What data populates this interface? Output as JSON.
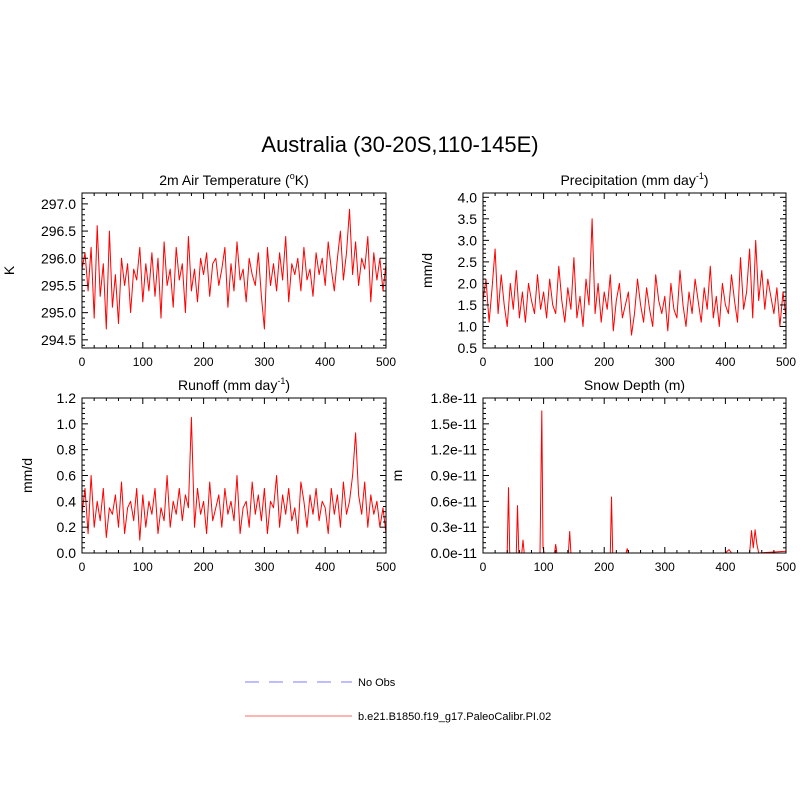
{
  "figure": {
    "title": "Australia (30-20S,110-145E)"
  },
  "legend": {
    "entries": [
      {
        "label": "No Obs",
        "color": "#a9a9ff",
        "style": "dashed"
      },
      {
        "label": "b.e21.B1850.f19_g17.PaleoCalibr.PI.02",
        "color": "#ff9a9a",
        "style": "solid"
      }
    ]
  },
  "chart_data": [
    {
      "type": "line",
      "title": "2m Air Temperature (",
      "title_sup": "o",
      "title_after": "K)",
      "xlabel": "",
      "ylabel": "K",
      "xlim": [
        0,
        500
      ],
      "ylim": [
        294.35,
        297.2
      ],
      "xticks": [
        0,
        100,
        200,
        300,
        400,
        500
      ],
      "xtick_labels": [
        "0",
        "100",
        "200",
        "300",
        "400",
        "500"
      ],
      "yticks": [
        294.5,
        295.0,
        295.5,
        296.0,
        296.5,
        297.0
      ],
      "ytick_labels": [
        "294.5",
        "295.0",
        "295.5",
        "296.0",
        "296.5",
        "297.0"
      ],
      "series": [
        {
          "name": "b.e21.B1850.f19_g17.PaleoCalibr.PI.02",
          "color": "#ff0000",
          "x": [
            0,
            5,
            10,
            15,
            20,
            25,
            30,
            35,
            40,
            45,
            50,
            55,
            60,
            65,
            70,
            75,
            80,
            85,
            90,
            95,
            100,
            105,
            110,
            115,
            120,
            125,
            130,
            135,
            140,
            145,
            150,
            155,
            160,
            165,
            170,
            175,
            180,
            185,
            190,
            195,
            200,
            205,
            210,
            215,
            220,
            225,
            230,
            235,
            240,
            245,
            250,
            255,
            260,
            265,
            270,
            275,
            280,
            285,
            290,
            295,
            300,
            305,
            310,
            315,
            320,
            325,
            330,
            335,
            340,
            345,
            350,
            355,
            360,
            365,
            370,
            375,
            380,
            385,
            390,
            395,
            400,
            405,
            410,
            415,
            420,
            425,
            430,
            435,
            440,
            445,
            450,
            455,
            460,
            465,
            470,
            475,
            480,
            485,
            490,
            495,
            500
          ],
          "values": [
            295.8,
            296.1,
            295.4,
            296.2,
            294.9,
            296.6,
            295.3,
            295.9,
            294.7,
            296.5,
            295.1,
            295.7,
            294.8,
            296.0,
            295.5,
            295.9,
            295.0,
            295.8,
            295.6,
            296.2,
            295.2,
            295.9,
            295.4,
            296.1,
            295.3,
            296.0,
            294.9,
            296.3,
            295.5,
            295.8,
            295.1,
            296.2,
            295.6,
            295.9,
            295.0,
            296.4,
            295.4,
            295.8,
            295.2,
            296.0,
            295.7,
            296.1,
            295.3,
            295.9,
            296.0,
            295.5,
            295.8,
            296.2,
            295.1,
            295.9,
            295.4,
            296.3,
            295.6,
            295.8,
            295.2,
            296.0,
            295.7,
            295.5,
            296.1,
            295.3,
            294.7,
            296.2,
            295.5,
            295.9,
            295.4,
            296.1,
            295.6,
            296.4,
            295.2,
            295.9,
            295.7,
            296.0,
            295.4,
            296.2,
            295.6,
            295.8,
            295.3,
            296.1,
            295.7,
            296.0,
            295.5,
            296.3,
            295.8,
            295.4,
            296.0,
            296.5,
            295.6,
            296.1,
            296.9,
            295.7,
            296.3,
            295.5,
            296.0,
            295.8,
            296.4,
            295.2,
            296.1,
            295.6,
            296.0,
            295.4,
            295.9
          ]
        }
      ]
    },
    {
      "type": "line",
      "title": "Precipitation (mm day",
      "title_sup": "-1",
      "title_after": ")",
      "xlabel": "",
      "ylabel": "mm/d",
      "xlim": [
        0,
        500
      ],
      "ylim": [
        0.5,
        4.1
      ],
      "xticks": [
        0,
        100,
        200,
        300,
        400,
        500
      ],
      "xtick_labels": [
        "0",
        "100",
        "200",
        "300",
        "400",
        "500"
      ],
      "yticks": [
        0.5,
        1.0,
        1.5,
        2.0,
        2.5,
        3.0,
        3.5,
        4.0
      ],
      "ytick_labels": [
        "0.5",
        "1.0",
        "1.5",
        "2.0",
        "2.5",
        "3.0",
        "3.5",
        "4.0"
      ],
      "series": [
        {
          "name": "b.e21.B1850.f19_g17.PaleoCalibr.PI.02",
          "color": "#ff0000",
          "x": [
            0,
            5,
            10,
            15,
            20,
            25,
            30,
            35,
            40,
            45,
            50,
            55,
            60,
            65,
            70,
            75,
            80,
            85,
            90,
            95,
            100,
            105,
            110,
            115,
            120,
            125,
            130,
            135,
            140,
            145,
            150,
            155,
            160,
            165,
            170,
            175,
            180,
            185,
            190,
            195,
            200,
            205,
            210,
            215,
            220,
            225,
            230,
            235,
            240,
            245,
            250,
            255,
            260,
            265,
            270,
            275,
            280,
            285,
            290,
            295,
            300,
            305,
            310,
            315,
            320,
            325,
            330,
            335,
            340,
            345,
            350,
            355,
            360,
            365,
            370,
            375,
            380,
            385,
            390,
            395,
            400,
            405,
            410,
            415,
            420,
            425,
            430,
            435,
            440,
            445,
            450,
            455,
            460,
            465,
            470,
            475,
            480,
            485,
            490,
            495,
            500
          ],
          "values": [
            1.6,
            2.1,
            1.1,
            1.9,
            2.8,
            1.3,
            2.2,
            1.5,
            1.0,
            2.0,
            1.4,
            2.3,
            1.2,
            1.8,
            1.1,
            2.0,
            1.6,
            1.3,
            2.2,
            1.4,
            1.8,
            1.2,
            2.1,
            1.5,
            1.3,
            2.4,
            1.6,
            1.1,
            1.9,
            1.4,
            2.6,
            1.2,
            1.7,
            1.0,
            2.1,
            1.5,
            3.5,
            1.3,
            2.0,
            1.1,
            1.8,
            1.4,
            2.2,
            0.9,
            1.6,
            2.0,
            1.2,
            1.5,
            1.8,
            0.8,
            1.3,
            2.1,
            1.5,
            1.1,
            1.9,
            1.4,
            1.0,
            2.2,
            1.6,
            1.3,
            1.7,
            0.9,
            2.0,
            1.4,
            1.2,
            2.3,
            1.5,
            1.0,
            1.8,
            1.3,
            2.1,
            1.6,
            1.1,
            1.9,
            1.4,
            2.4,
            1.2,
            1.7,
            1.0,
            2.0,
            1.5,
            1.3,
            2.2,
            1.6,
            1.1,
            2.6,
            1.4,
            1.8,
            2.8,
            1.2,
            3.0,
            1.6,
            2.3,
            1.4,
            2.1,
            1.7,
            1.3,
            1.9,
            1.0,
            1.8,
            1.2
          ]
        }
      ]
    },
    {
      "type": "line",
      "title": "Runoff (mm day",
      "title_sup": "-1",
      "title_after": ")",
      "xlabel": "",
      "ylabel": "mm/d",
      "xlim": [
        0,
        500
      ],
      "ylim": [
        0,
        1.2
      ],
      "xticks": [
        0,
        100,
        200,
        300,
        400,
        500
      ],
      "xtick_labels": [
        "0",
        "100",
        "200",
        "300",
        "400",
        "500"
      ],
      "yticks": [
        0.0,
        0.2,
        0.4,
        0.6,
        0.8,
        1.0,
        1.2
      ],
      "ytick_labels": [
        "0.0",
        "0.2",
        "0.4",
        "0.6",
        "0.8",
        "1.0",
        "1.2"
      ],
      "series": [
        {
          "name": "b.e21.B1850.f19_g17.PaleoCalibr.PI.02",
          "color": "#ff0000",
          "x": [
            0,
            5,
            10,
            15,
            20,
            25,
            30,
            35,
            40,
            45,
            50,
            55,
            60,
            65,
            70,
            75,
            80,
            85,
            90,
            95,
            100,
            105,
            110,
            115,
            120,
            125,
            130,
            135,
            140,
            145,
            150,
            155,
            160,
            165,
            170,
            175,
            180,
            185,
            190,
            195,
            200,
            205,
            210,
            215,
            220,
            225,
            230,
            235,
            240,
            245,
            250,
            255,
            260,
            265,
            270,
            275,
            280,
            285,
            290,
            295,
            300,
            305,
            310,
            315,
            320,
            325,
            330,
            335,
            340,
            345,
            350,
            355,
            360,
            365,
            370,
            375,
            380,
            385,
            390,
            395,
            400,
            405,
            410,
            415,
            420,
            425,
            430,
            435,
            440,
            445,
            450,
            455,
            460,
            465,
            470,
            475,
            480,
            485,
            490,
            495,
            500
          ],
          "values": [
            0.3,
            0.5,
            0.15,
            0.6,
            0.2,
            0.4,
            0.25,
            0.5,
            0.12,
            0.35,
            0.3,
            0.45,
            0.2,
            0.55,
            0.15,
            0.35,
            0.4,
            0.25,
            0.5,
            0.1,
            0.45,
            0.2,
            0.4,
            0.3,
            0.5,
            0.15,
            0.35,
            0.25,
            0.6,
            0.2,
            0.4,
            0.3,
            0.5,
            0.25,
            0.45,
            0.35,
            1.05,
            0.2,
            0.5,
            0.3,
            0.4,
            0.15,
            0.55,
            0.25,
            0.35,
            0.45,
            0.2,
            0.5,
            0.3,
            0.4,
            0.25,
            0.6,
            0.15,
            0.35,
            0.4,
            0.2,
            0.55,
            0.3,
            0.45,
            0.25,
            0.5,
            0.15,
            0.4,
            0.35,
            0.6,
            0.2,
            0.45,
            0.3,
            0.5,
            0.25,
            0.35,
            0.15,
            0.55,
            0.4,
            0.2,
            0.45,
            0.3,
            0.5,
            0.25,
            0.4,
            0.35,
            0.15,
            0.5,
            0.3,
            0.45,
            0.2,
            0.55,
            0.3,
            0.4,
            0.6,
            0.93,
            0.45,
            0.3,
            0.55,
            0.2,
            0.45,
            0.3,
            0.4,
            0.2,
            0.35,
            0.15
          ]
        }
      ]
    },
    {
      "type": "line",
      "title": "Snow Depth (m)",
      "title_sup": "",
      "title_after": "",
      "xlabel": "",
      "ylabel": "m",
      "xlim": [
        0,
        500
      ],
      "ylim": [
        0,
        1.8
      ],
      "value_scale": "1e-11",
      "xticks": [
        0,
        100,
        200,
        300,
        400,
        500
      ],
      "xtick_labels": [
        "0",
        "100",
        "200",
        "300",
        "400",
        "500"
      ],
      "yticks": [
        0.0,
        0.3,
        0.6,
        0.9,
        1.2,
        1.5,
        1.8
      ],
      "ytick_labels": [
        "0.0e-11",
        "0.3e-11",
        "0.6e-11",
        "0.9e-11",
        "1.2e-11",
        "1.5e-11",
        "1.8e-11"
      ],
      "series": [
        {
          "name": "b.e21.B1850.f19_g17.PaleoCalibr.PI.02",
          "color": "#ff0000",
          "x": [
            0,
            40,
            42,
            44,
            46,
            55,
            57,
            59,
            64,
            66,
            68,
            94,
            97,
            99,
            101,
            118,
            120,
            122,
            141,
            143,
            145,
            210,
            212,
            214,
            236,
            238,
            240,
            400,
            403,
            406,
            410,
            440,
            443,
            446,
            449,
            452,
            455,
            500
          ],
          "values": [
            0,
            0,
            0.76,
            0,
            0,
            0,
            0.55,
            0,
            0,
            0.15,
            0,
            0,
            1.65,
            0.06,
            0,
            0,
            0.1,
            0,
            0,
            0.25,
            0,
            0,
            0.65,
            0,
            0,
            0.05,
            0,
            0,
            0.02,
            0.04,
            0,
            0,
            0.26,
            0.06,
            0.27,
            0.1,
            0,
            0.02
          ]
        }
      ]
    }
  ]
}
